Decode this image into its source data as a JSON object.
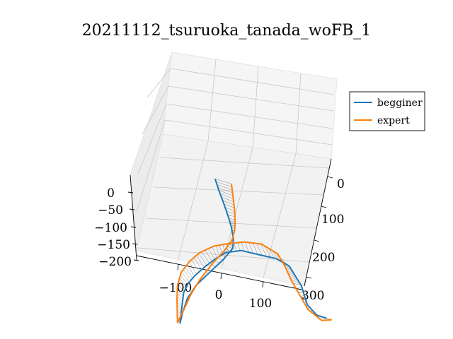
{
  "chart_data": {
    "type": "line",
    "projection": "3d",
    "title": "20211112_tsuruoka_tanada_woFB_1",
    "xlabel": "",
    "ylabel": "",
    "zlabel": "",
    "x_ticks": [
      "−100",
      "0",
      "100"
    ],
    "y_ticks": [
      "0",
      "100",
      "200",
      "300"
    ],
    "z_ticks": [
      "0",
      "−50",
      "−100",
      "−150",
      "−200"
    ],
    "xlim": [
      -190,
      190
    ],
    "ylim": [
      -60,
      320
    ],
    "zlim": [
      -200,
      20
    ],
    "grid": true,
    "legend_position": "upper-right",
    "connectors": "thin grey lines join matching samples of the two trajectories",
    "series": [
      {
        "name": "begginer",
        "color": "#1f77b4",
        "points": [
          [
            140,
            230,
            -30
          ],
          [
            120,
            225,
            -32
          ],
          [
            110,
            200,
            -35
          ],
          [
            112,
            180,
            -30
          ],
          [
            115,
            160,
            -25
          ],
          [
            110,
            140,
            -20
          ],
          [
            105,
            120,
            -15
          ],
          [
            80,
            110,
            -10
          ],
          [
            40,
            110,
            -8
          ],
          [
            0,
            110,
            -5
          ],
          [
            -40,
            120,
            -10
          ],
          [
            -70,
            135,
            -20
          ],
          [
            -100,
            150,
            -35
          ],
          [
            -130,
            165,
            -55
          ],
          [
            -150,
            175,
            -75
          ],
          [
            -165,
            185,
            -100
          ],
          [
            -170,
            190,
            -130
          ],
          [
            -175,
            195,
            -160
          ],
          [
            -180,
            200,
            -195
          ],
          [
            -170,
            190,
            -170
          ],
          [
            -150,
            170,
            -140
          ],
          [
            -120,
            150,
            -110
          ],
          [
            -80,
            130,
            -80
          ],
          [
            -40,
            110,
            -50
          ],
          [
            -10,
            90,
            -30
          ],
          [
            0,
            70,
            -20
          ],
          [
            5,
            50,
            -10
          ],
          [
            8,
            30,
            -5
          ],
          [
            10,
            0,
            5
          ],
          [
            12,
            -30,
            10
          ],
          [
            15,
            -55,
            15
          ]
        ]
      },
      {
        "name": "expert",
        "color": "#ff7f0e",
        "points": [
          [
            150,
            235,
            -25
          ],
          [
            125,
            240,
            -28
          ],
          [
            105,
            215,
            -32
          ],
          [
            100,
            180,
            -28
          ],
          [
            95,
            150,
            -22
          ],
          [
            95,
            120,
            -18
          ],
          [
            90,
            95,
            -12
          ],
          [
            60,
            80,
            -8
          ],
          [
            20,
            85,
            -5
          ],
          [
            -20,
            95,
            -8
          ],
          [
            -60,
            105,
            -15
          ],
          [
            -100,
            120,
            -30
          ],
          [
            -130,
            135,
            -50
          ],
          [
            -155,
            150,
            -75
          ],
          [
            -170,
            165,
            -105
          ],
          [
            -178,
            180,
            -135
          ],
          [
            -182,
            190,
            -165
          ],
          [
            -185,
            198,
            -198
          ],
          [
            -165,
            185,
            -165
          ],
          [
            -140,
            165,
            -130
          ],
          [
            -110,
            145,
            -95
          ],
          [
            -70,
            120,
            -60
          ],
          [
            -30,
            95,
            -35
          ],
          [
            -5,
            75,
            -20
          ],
          [
            10,
            55,
            -10
          ],
          [
            20,
            35,
            -5
          ],
          [
            30,
            10,
            5
          ],
          [
            40,
            -20,
            10
          ],
          [
            50,
            -50,
            15
          ]
        ]
      }
    ]
  }
}
